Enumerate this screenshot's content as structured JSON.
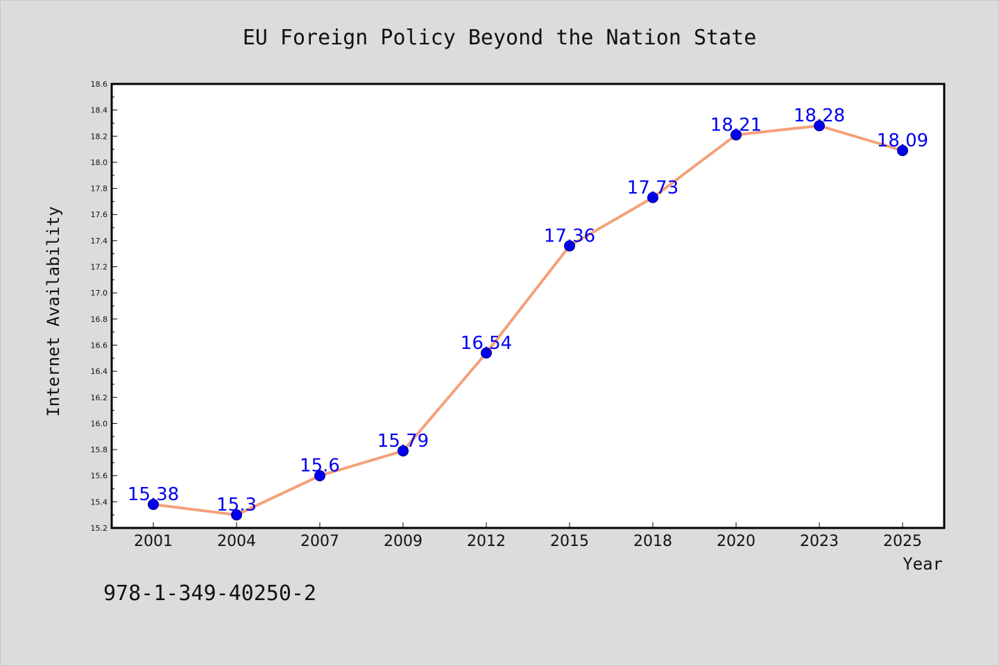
{
  "chart_data": {
    "type": "line",
    "title": "EU Foreign Policy Beyond the Nation State",
    "xlabel": "Year",
    "ylabel": "Internet Availability",
    "categories": [
      "2001",
      "2004",
      "2007",
      "2009",
      "2012",
      "2015",
      "2018",
      "2020",
      "2023",
      "2025"
    ],
    "series": [
      {
        "values": [
          15.38,
          15.3,
          15.6,
          15.79,
          16.54,
          17.36,
          17.73,
          18.21,
          18.28,
          18.09
        ],
        "data_labels": [
          "15.38",
          "15.3",
          "15.6",
          "15.79",
          "16.54",
          "17.36",
          "17.73",
          "18.21",
          "18.28",
          "18.09"
        ]
      }
    ],
    "ylim": [
      15.2,
      18.6
    ],
    "yticks": [
      "15.2",
      "15.4",
      "15.6",
      "15.8",
      "16.0",
      "16.2",
      "16.4",
      "16.6",
      "16.8",
      "17.0",
      "17.2",
      "17.4",
      "17.6",
      "17.8",
      "18.0",
      "18.2",
      "18.4",
      "18.6"
    ],
    "grid": false,
    "colors": {
      "line": "#f4a07a",
      "marker": "#0000ee",
      "marker_edge": "#000080",
      "data_label": "#0000ee",
      "plot_background": "#ffffff",
      "figure_background": "#dcdcdc"
    }
  },
  "footer": {
    "isbn": "978-1-349-40250-2"
  }
}
